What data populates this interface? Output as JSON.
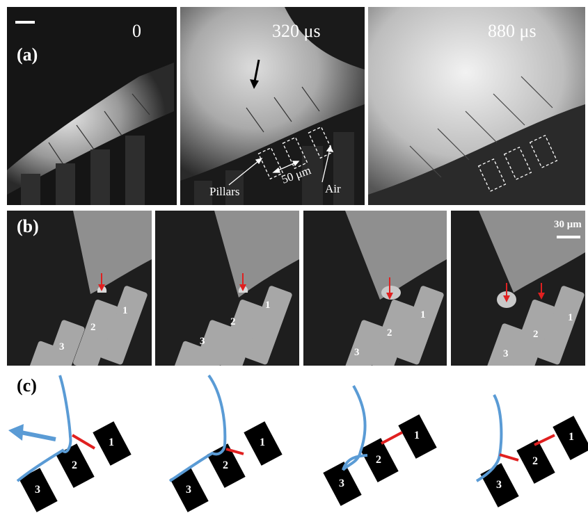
{
  "row_a": {
    "panel_label": "(a)",
    "times": [
      "0",
      "320 μs",
      "880 μs"
    ],
    "annotations": {
      "pillars": "Pillars",
      "spacing": "50 μm",
      "air": "Air"
    }
  },
  "row_b": {
    "panel_label": "(b)",
    "scale": "30 μm",
    "pillar_numbers": [
      "1",
      "2",
      "3"
    ]
  },
  "row_c": {
    "panel_label": "(c)",
    "pillar_numbers": [
      "1",
      "2",
      "3"
    ]
  },
  "colors": {
    "interface": "#5a9bd5",
    "bridge": "#e02020",
    "pillar": "#000000",
    "arrow_red": "#e02020"
  }
}
